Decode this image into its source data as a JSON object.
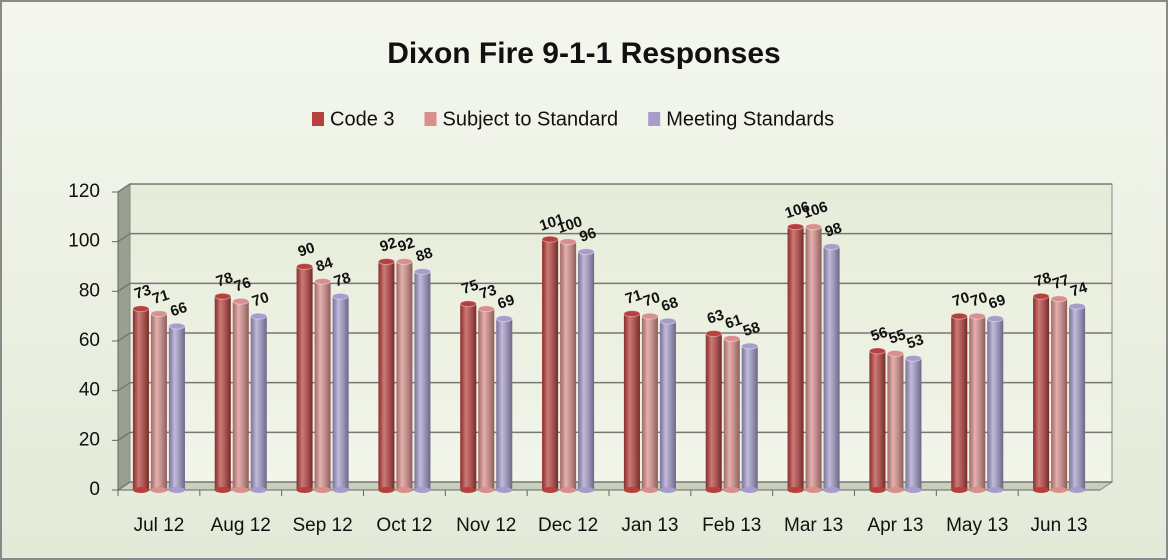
{
  "chart_data": {
    "type": "bar",
    "title": "Dixon Fire 9-1-1 Responses",
    "categories": [
      "Jul 12",
      "Aug 12",
      "Sep 12",
      "Oct 12",
      "Nov 12",
      "Dec 12",
      "Jan 13",
      "Feb 13",
      "Mar 13",
      "Apr 13",
      "May 13",
      "Jun 13"
    ],
    "series": [
      {
        "name": "Code 3",
        "color": "#b8403c",
        "values": [
          73,
          78,
          90,
          92,
          75,
          101,
          71,
          63,
          106,
          56,
          70,
          78
        ]
      },
      {
        "name": "Subject to Standard",
        "color": "#d98f8c",
        "values": [
          71,
          76,
          84,
          92,
          73,
          100,
          70,
          61,
          106,
          55,
          70,
          77
        ]
      },
      {
        "name": "Meeting Standards",
        "color": "#a79ccc",
        "values": [
          66,
          70,
          78,
          88,
          69,
          96,
          68,
          58,
          98,
          53,
          69,
          74
        ]
      }
    ],
    "ylim": [
      0,
      120
    ],
    "yticks": [
      0,
      20,
      40,
      60,
      80,
      100,
      120
    ],
    "grid": true,
    "legend": "top"
  }
}
